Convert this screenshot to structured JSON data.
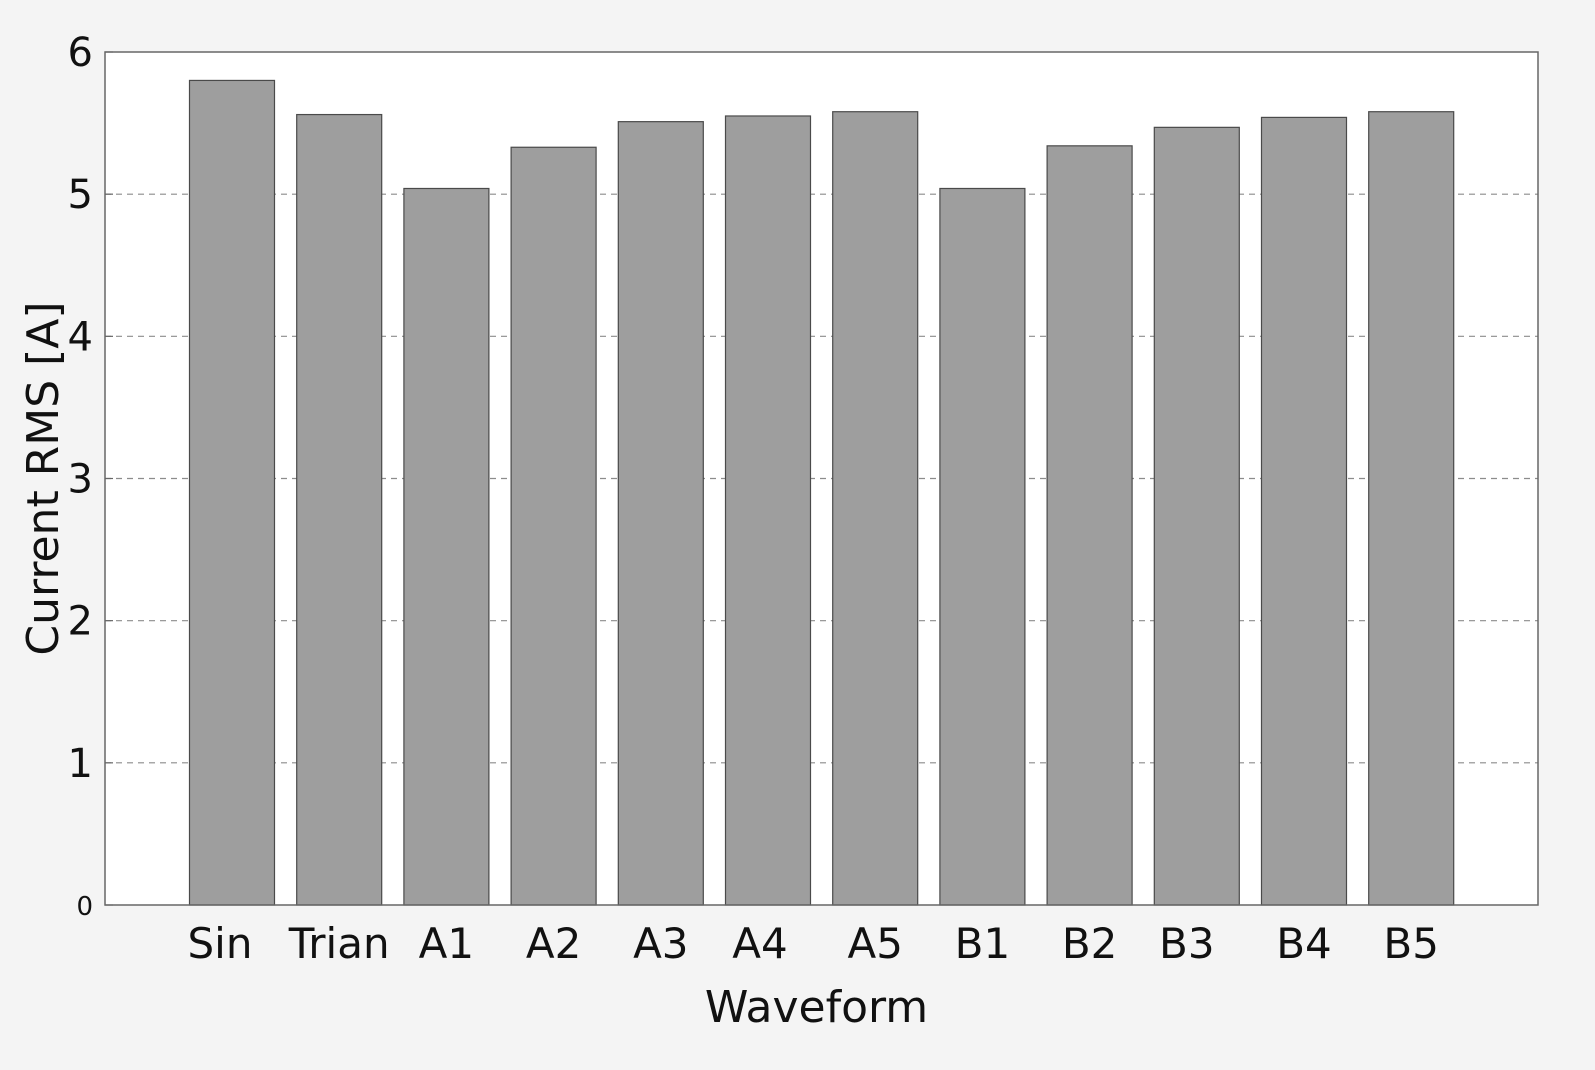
{
  "chart_data": {
    "type": "bar",
    "title": "",
    "xlabel": "Waveform",
    "ylabel": "Current RMS [A]",
    "categories": [
      "Sin",
      "Trian",
      "A1",
      "A2",
      "A3",
      "A4",
      "A5",
      "B1",
      "B2",
      "B3",
      "B4",
      "B5"
    ],
    "values": [
      5.8,
      5.56,
      5.04,
      5.33,
      5.51,
      5.55,
      5.58,
      5.04,
      5.34,
      5.47,
      5.54,
      5.58
    ],
    "ylim": [
      0,
      6
    ],
    "yticks": [
      "0",
      "1",
      "2",
      "3",
      "4",
      "5",
      "6"
    ],
    "grid": true,
    "colors": {
      "bar_fill": "#9e9e9e",
      "bar_stroke": "#4a4a4a",
      "grid": "#8c8c8c",
      "frame": "#666666",
      "background": "#ffffff",
      "outer_background": "#f4f4f4"
    }
  }
}
